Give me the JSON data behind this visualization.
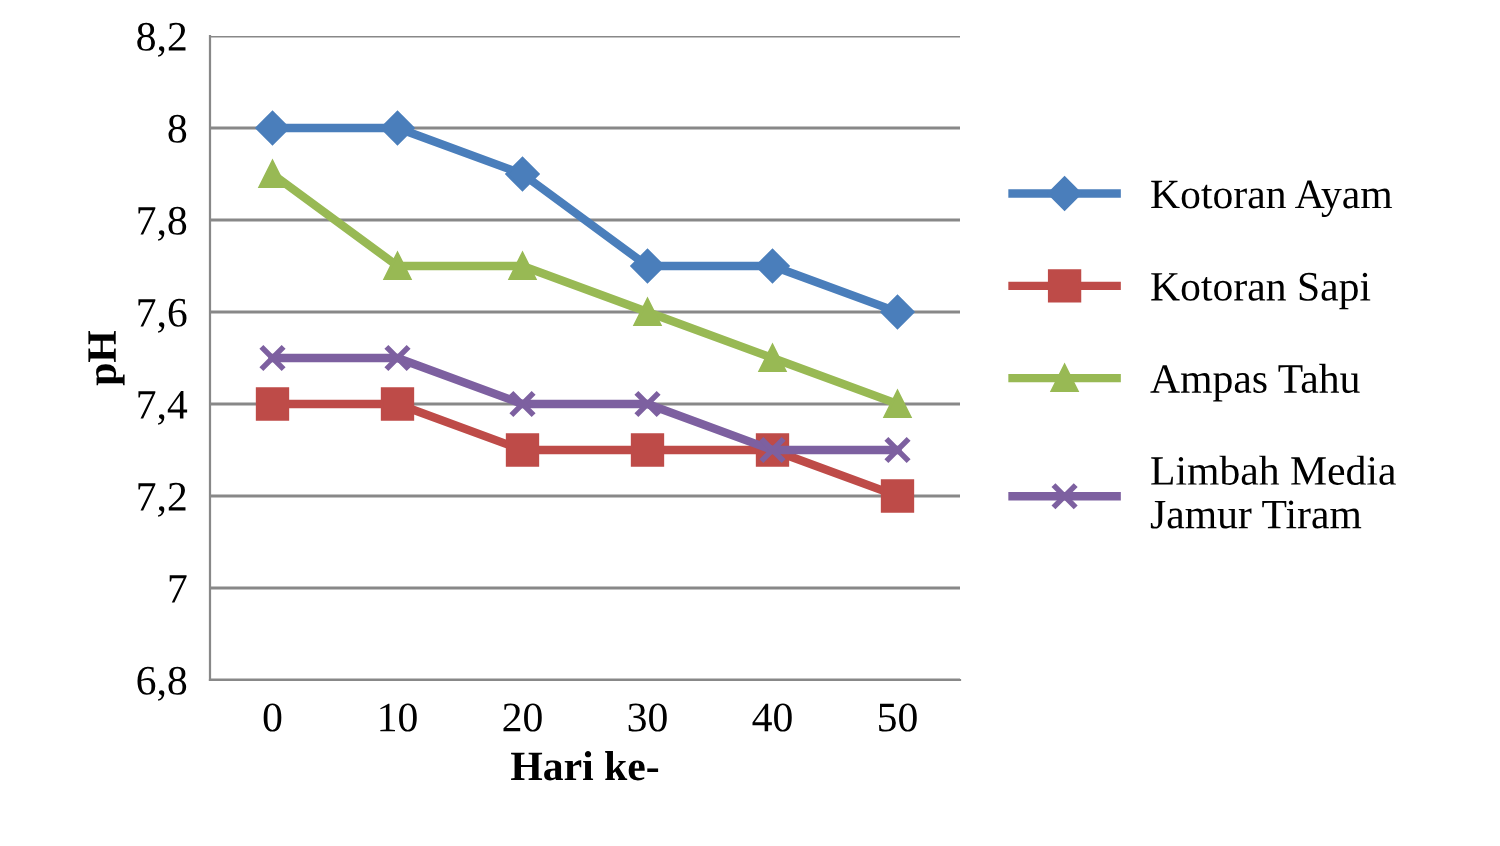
{
  "chart_data": {
    "type": "line",
    "xlabel": "Hari ke-",
    "ylabel": "pH",
    "categories": [
      "0",
      "10",
      "20",
      "30",
      "40",
      "50"
    ],
    "ylim": [
      6.8,
      8.2
    ],
    "yticks": [
      {
        "value": 6.8,
        "label": "6,8"
      },
      7,
      {
        "value": 7.2,
        "label": "7,2"
      },
      {
        "value": 7.4,
        "label": "7,4"
      },
      {
        "value": 7.6,
        "label": "7,6"
      },
      {
        "value": 7.8,
        "label": "7,8"
      },
      8,
      {
        "value": 8.2,
        "label": "8,2"
      }
    ],
    "grid": "y",
    "legend": "right",
    "line_style": "solid",
    "series": [
      {
        "name": "Kotoran Ayam",
        "color": "#4a7ebb",
        "marker": "diamond",
        "values": [
          8,
          8,
          7.9,
          7.7,
          7.7,
          7.6
        ]
      },
      {
        "name": "Kotoran Sapi",
        "color": "#be4b48",
        "marker": "square",
        "values": [
          7.4,
          7.4,
          7.3,
          7.3,
          7.3,
          7.2
        ]
      },
      {
        "name": "Ampas Tahu",
        "color": "#98b954",
        "marker": "triangle",
        "values": [
          7.9,
          7.7,
          7.7,
          7.6,
          7.5,
          7.4
        ]
      },
      {
        "name": "Limbah Media Jamur Tiram",
        "color": "#7d60a0",
        "marker": "cross",
        "values": [
          7.5,
          7.5,
          7.4,
          7.4,
          7.3,
          7.3
        ]
      }
    ]
  }
}
